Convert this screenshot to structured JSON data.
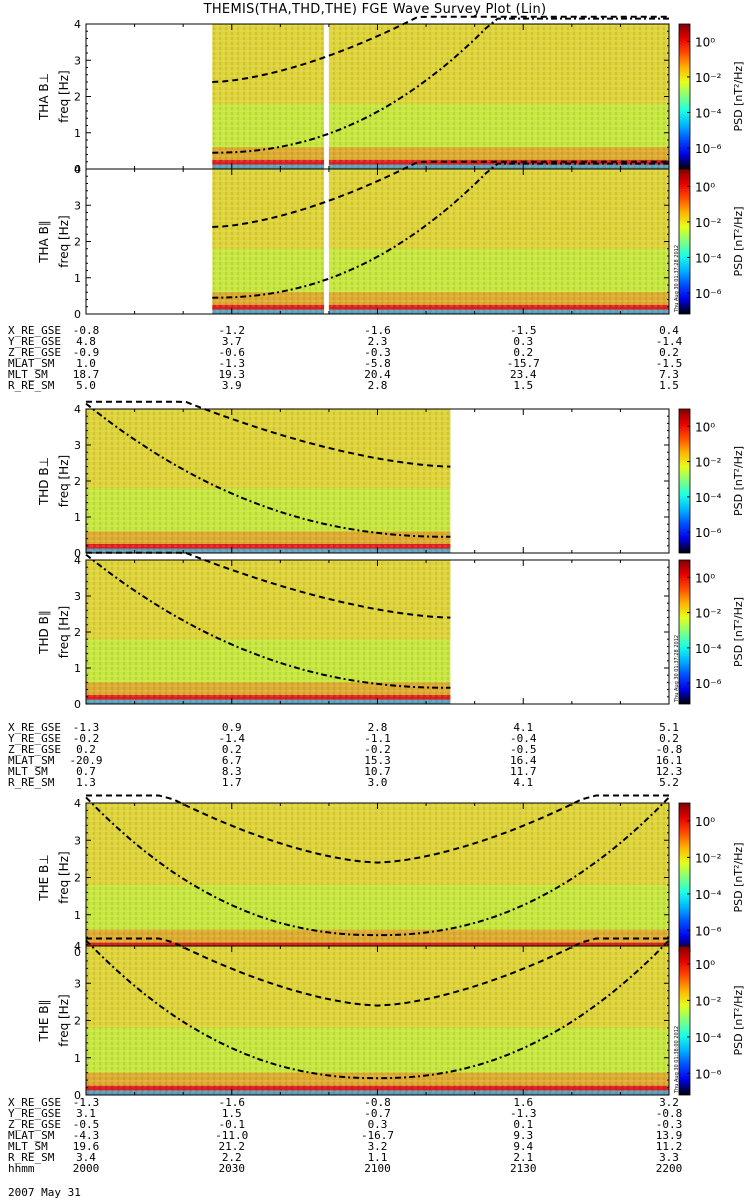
{
  "title": "THEMIS(THA,THD,THE) FGE Wave Survey Plot (Lin)",
  "date_label": "2007 May 31",
  "colorbar": {
    "label": "PSD [nT²/Hz]",
    "ticks": [
      "10⁰",
      "10⁻²",
      "10⁻⁴",
      "10⁻⁶"
    ],
    "stamp": "Thu Aug 30 01:37:28 2012"
  },
  "colorbar_stamp_the": "Thu Aug 30 01:38:00 2012",
  "chart_data": [
    {
      "type": "heatmap",
      "probe": "THA",
      "panels": [
        {
          "ylabel": "THA B⊥",
          "yunit": "freq [Hz]"
        },
        {
          "ylabel": "THA B∥",
          "yunit": "freq [Hz]"
        }
      ],
      "y_ticks": [
        "0",
        "1",
        "2",
        "3",
        "4"
      ],
      "ylim": [
        0,
        4
      ],
      "x_time_range": [
        "2000",
        "2200"
      ],
      "data_coverage": [
        [
          "2026",
          "2049"
        ],
        [
          "2050",
          "2200"
        ]
      ],
      "ephemeris": [
        {
          "label": "X_RE_GSE",
          "values": [
            "-0.8",
            "-1.2",
            "-1.6",
            "-1.5",
            "0.4"
          ]
        },
        {
          "label": "Y_RE_GSE",
          "values": [
            "4.8",
            "3.7",
            "2.3",
            "0.3",
            "-1.4"
          ]
        },
        {
          "label": "Z_RE_GSE",
          "values": [
            "-0.9",
            "-0.6",
            "-0.3",
            "0.2",
            "0.2"
          ]
        },
        {
          "label": "MLAT_SM",
          "values": [
            "1.0",
            "-1.3",
            "-5.8",
            "-15.7",
            "-1.5"
          ]
        },
        {
          "label": "MLT_SM",
          "values": [
            "18.7",
            "19.3",
            "20.4",
            "23.4",
            "7.3"
          ]
        },
        {
          "label": "R_RE_SM",
          "values": [
            "5.0",
            "3.9",
            "2.8",
            "1.5",
            "1.5"
          ]
        }
      ]
    },
    {
      "type": "heatmap",
      "probe": "THD",
      "panels": [
        {
          "ylabel": "THD B⊥",
          "yunit": "freq [Hz]"
        },
        {
          "ylabel": "THD B∥",
          "yunit": "freq [Hz]"
        }
      ],
      "y_ticks": [
        "0",
        "1",
        "2",
        "3",
        "4"
      ],
      "ylim": [
        0,
        4
      ],
      "x_time_range": [
        "2000",
        "2200"
      ],
      "data_coverage": [
        [
          "2000",
          "2115"
        ]
      ],
      "ephemeris": [
        {
          "label": "X_RE_GSE",
          "values": [
            "-1.3",
            "0.9",
            "2.8",
            "4.1",
            "5.1"
          ]
        },
        {
          "label": "Y_RE_GSE",
          "values": [
            "-0.2",
            "-1.4",
            "-1.1",
            "-0.4",
            "0.2"
          ]
        },
        {
          "label": "Z_RE_GSE",
          "values": [
            "0.2",
            "0.2",
            "-0.2",
            "-0.5",
            "-0.8"
          ]
        },
        {
          "label": "MLAT_SM",
          "values": [
            "-20.9",
            "6.7",
            "15.3",
            "16.4",
            "16.1"
          ]
        },
        {
          "label": "MLT_SM",
          "values": [
            "0.7",
            "8.3",
            "10.7",
            "11.7",
            "12.3"
          ]
        },
        {
          "label": "R_RE_SM",
          "values": [
            "1.3",
            "1.7",
            "3.0",
            "4.1",
            "5.2"
          ]
        }
      ]
    },
    {
      "type": "heatmap",
      "probe": "THE",
      "panels": [
        {
          "ylabel": "THE B⊥",
          "yunit": "freq [Hz]"
        },
        {
          "ylabel": "THE B∥",
          "yunit": "freq [Hz]"
        }
      ],
      "y_ticks": [
        "0",
        "1",
        "2",
        "3",
        "4"
      ],
      "ylim": [
        0,
        4
      ],
      "x_time_range": [
        "2000",
        "2200"
      ],
      "data_coverage": [
        [
          "2000",
          "2200"
        ]
      ],
      "ephemeris": [
        {
          "label": "X_RE_GSE",
          "values": [
            "-1.3",
            "-1.6",
            "-0.8",
            "1.6",
            "3.2"
          ]
        },
        {
          "label": "Y_RE_GSE",
          "values": [
            "3.1",
            "1.5",
            "-0.7",
            "-1.3",
            "-0.8"
          ]
        },
        {
          "label": "Z_RE_GSE",
          "values": [
            "-0.5",
            "-0.1",
            "0.3",
            "0.1",
            "-0.3"
          ]
        },
        {
          "label": "MLAT_SM",
          "values": [
            "-4.3",
            "-11.0",
            "-16.7",
            "9.3",
            "13.9"
          ]
        },
        {
          "label": "MLT_SM",
          "values": [
            "19.6",
            "21.2",
            "3.2",
            "9.4",
            "11.2"
          ]
        },
        {
          "label": "R_RE_SM",
          "values": [
            "3.4",
            "2.2",
            "1.1",
            "2.1",
            "3.3"
          ]
        },
        {
          "label": "hhmm",
          "values": [
            "2000",
            "2030",
            "2100",
            "2130",
            "2200"
          ]
        }
      ]
    }
  ]
}
